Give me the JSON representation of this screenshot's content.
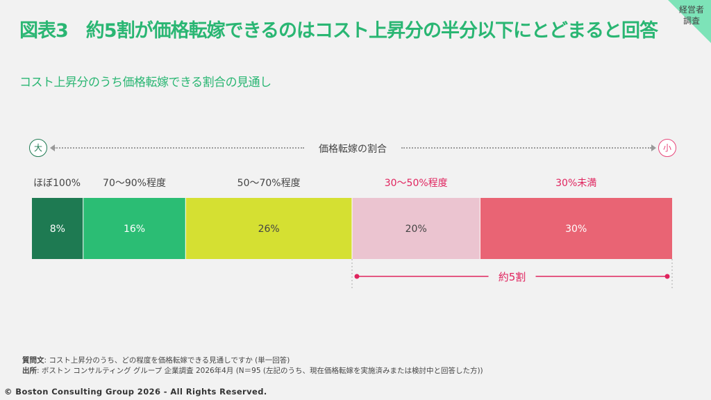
{
  "title": "図表3　約5割が価格転嫁できるのはコスト上昇分の半分以下にとどまると回答",
  "subtitle": "コスト上昇分のうち価格転嫁できる割合の見通し",
  "corner_label_line1": "経営者",
  "corner_label_line2": "調査",
  "axis": {
    "label": "価格転嫁の割合",
    "left_marker": "大",
    "right_marker": "小"
  },
  "colors": {
    "title": "#2ab673",
    "corner_bg": "#7de3b8",
    "highlight": "#e0245e"
  },
  "chart_data": {
    "type": "bar",
    "orientation": "horizontal-stacked-100",
    "unit": "%",
    "categories": [
      "ほぼ100%",
      "70〜90%程度",
      "50〜70%程度",
      "30〜50%程度",
      "30%未満"
    ],
    "values": [
      8,
      16,
      26,
      20,
      30
    ],
    "value_labels": [
      "8%",
      "16%",
      "26%",
      "20%",
      "30%"
    ],
    "colors": [
      "#1e7a52",
      "#2bbd74",
      "#d5e032",
      "#ebc4d0",
      "#e96474"
    ],
    "label_colors": [
      "#444444",
      "#444444",
      "#444444",
      "#e0245e",
      "#e0245e"
    ],
    "value_label_colors": [
      "#ffffff",
      "#ffffff",
      "#444444",
      "#444444",
      "#ffffff"
    ],
    "bracket": {
      "label": "約5割",
      "from_category": "30〜50%程度",
      "to_category": "30%未満"
    }
  },
  "notes": {
    "question_label": "質問文",
    "question_text": ": コスト上昇分のうち、どの程度を価格転嫁できる見通しですか (単一回答)",
    "source_label": "出所",
    "source_text": ": ボストン コンサルティング グループ 企業調査 2026年4月 (N＝95 (左記のうち、現在価格転嫁を実施済みまたは検討中と回答した方))"
  },
  "copyright": "© Boston Consulting Group 2026 - All Rights Reserved."
}
